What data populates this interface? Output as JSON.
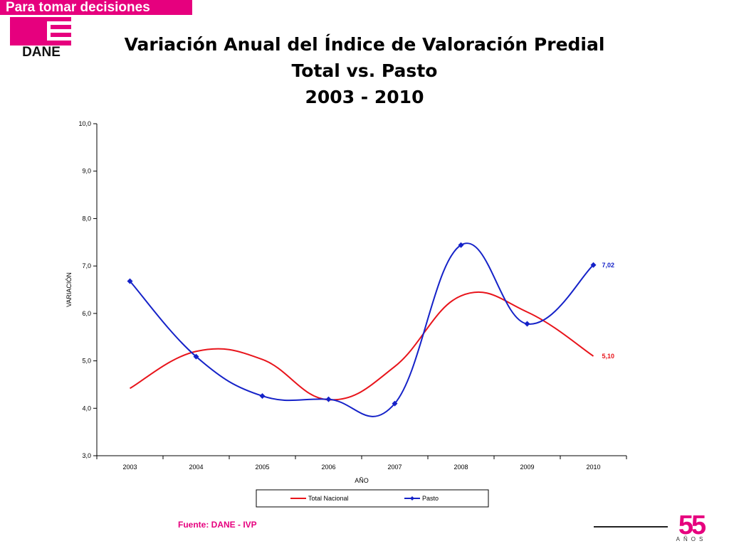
{
  "header": {
    "banner": "Para tomar decisiones",
    "logo_text": "DANE"
  },
  "title_lines": [
    "Variación Anual del Índice de Valoración Predial",
    "Total vs. Pasto",
    "2003 - 2010"
  ],
  "chart_data": {
    "type": "line",
    "categories": [
      "2003",
      "2004",
      "2005",
      "2006",
      "2007",
      "2008",
      "2009",
      "2010"
    ],
    "series": [
      {
        "name": "Total Nacional",
        "color": "#e8141b",
        "marker": "none",
        "values": [
          4.42,
          5.2,
          5.03,
          4.18,
          4.88,
          6.37,
          6.03,
          5.1
        ]
      },
      {
        "name": "Pasto",
        "color": "#1522c8",
        "marker": "diamond",
        "values": [
          6.68,
          5.09,
          4.26,
          4.19,
          4.1,
          7.44,
          5.78,
          7.02
        ]
      }
    ],
    "end_labels": [
      {
        "series": "Total Nacional",
        "text": "5,10",
        "color": "#e8141b"
      },
      {
        "series": "Pasto",
        "text": "7,02",
        "color": "#1522c8"
      }
    ],
    "ylim": [
      3.0,
      10.0
    ],
    "yticks": [
      "3,0",
      "4,0",
      "5,0",
      "6,0",
      "7,0",
      "8,0",
      "9,0",
      "10,0"
    ],
    "xlabel": "AÑO",
    "ylabel": "VARIACIÓN",
    "title": "",
    "grid": false,
    "legend_position": "bottom"
  },
  "footer": {
    "source": "Fuente: DANE - IVP",
    "anniversary_number": "55",
    "anniversary_word": "AÑOS"
  },
  "colors": {
    "brand_pink": "#e6007e"
  }
}
